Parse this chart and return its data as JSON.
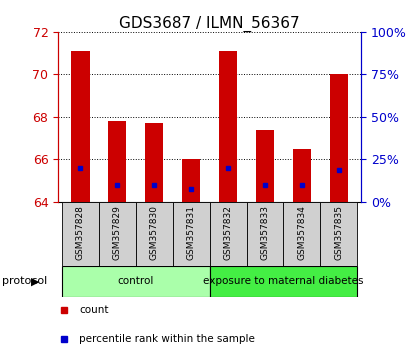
{
  "title": "GDS3687 / ILMN_56367",
  "samples": [
    "GSM357828",
    "GSM357829",
    "GSM357830",
    "GSM357831",
    "GSM357832",
    "GSM357833",
    "GSM357834",
    "GSM357835"
  ],
  "count_values": [
    71.1,
    67.8,
    67.7,
    66.0,
    71.1,
    67.4,
    66.5,
    70.0
  ],
  "percentile_values": [
    65.6,
    64.8,
    64.8,
    64.6,
    65.6,
    64.8,
    64.8,
    65.5
  ],
  "ylim_left": [
    64,
    72
  ],
  "yticks_left": [
    64,
    66,
    68,
    70,
    72
  ],
  "ylim_right": [
    0,
    100
  ],
  "yticks_right": [
    0,
    25,
    50,
    75,
    100
  ],
  "ytick_labels_right": [
    "0%",
    "25%",
    "50%",
    "75%",
    "100%"
  ],
  "bar_color": "#cc0000",
  "percentile_color": "#0000cc",
  "bar_width": 0.5,
  "groups": [
    {
      "label": "control",
      "start": 0,
      "end": 3,
      "color": "#aaffaa"
    },
    {
      "label": "exposure to maternal diabetes",
      "start": 4,
      "end": 7,
      "color": "#44ee44"
    }
  ],
  "protocol_label": "protocol",
  "legend_items": [
    {
      "label": "count",
      "color": "#cc0000"
    },
    {
      "label": "percentile rank within the sample",
      "color": "#0000cc"
    }
  ],
  "title_fontsize": 11,
  "tick_fontsize": 9,
  "background_color": "#ffffff",
  "left_tick_color": "#cc0000",
  "right_tick_color": "#0000cc",
  "sample_cell_color": "#d0d0d0",
  "n_samples": 8
}
